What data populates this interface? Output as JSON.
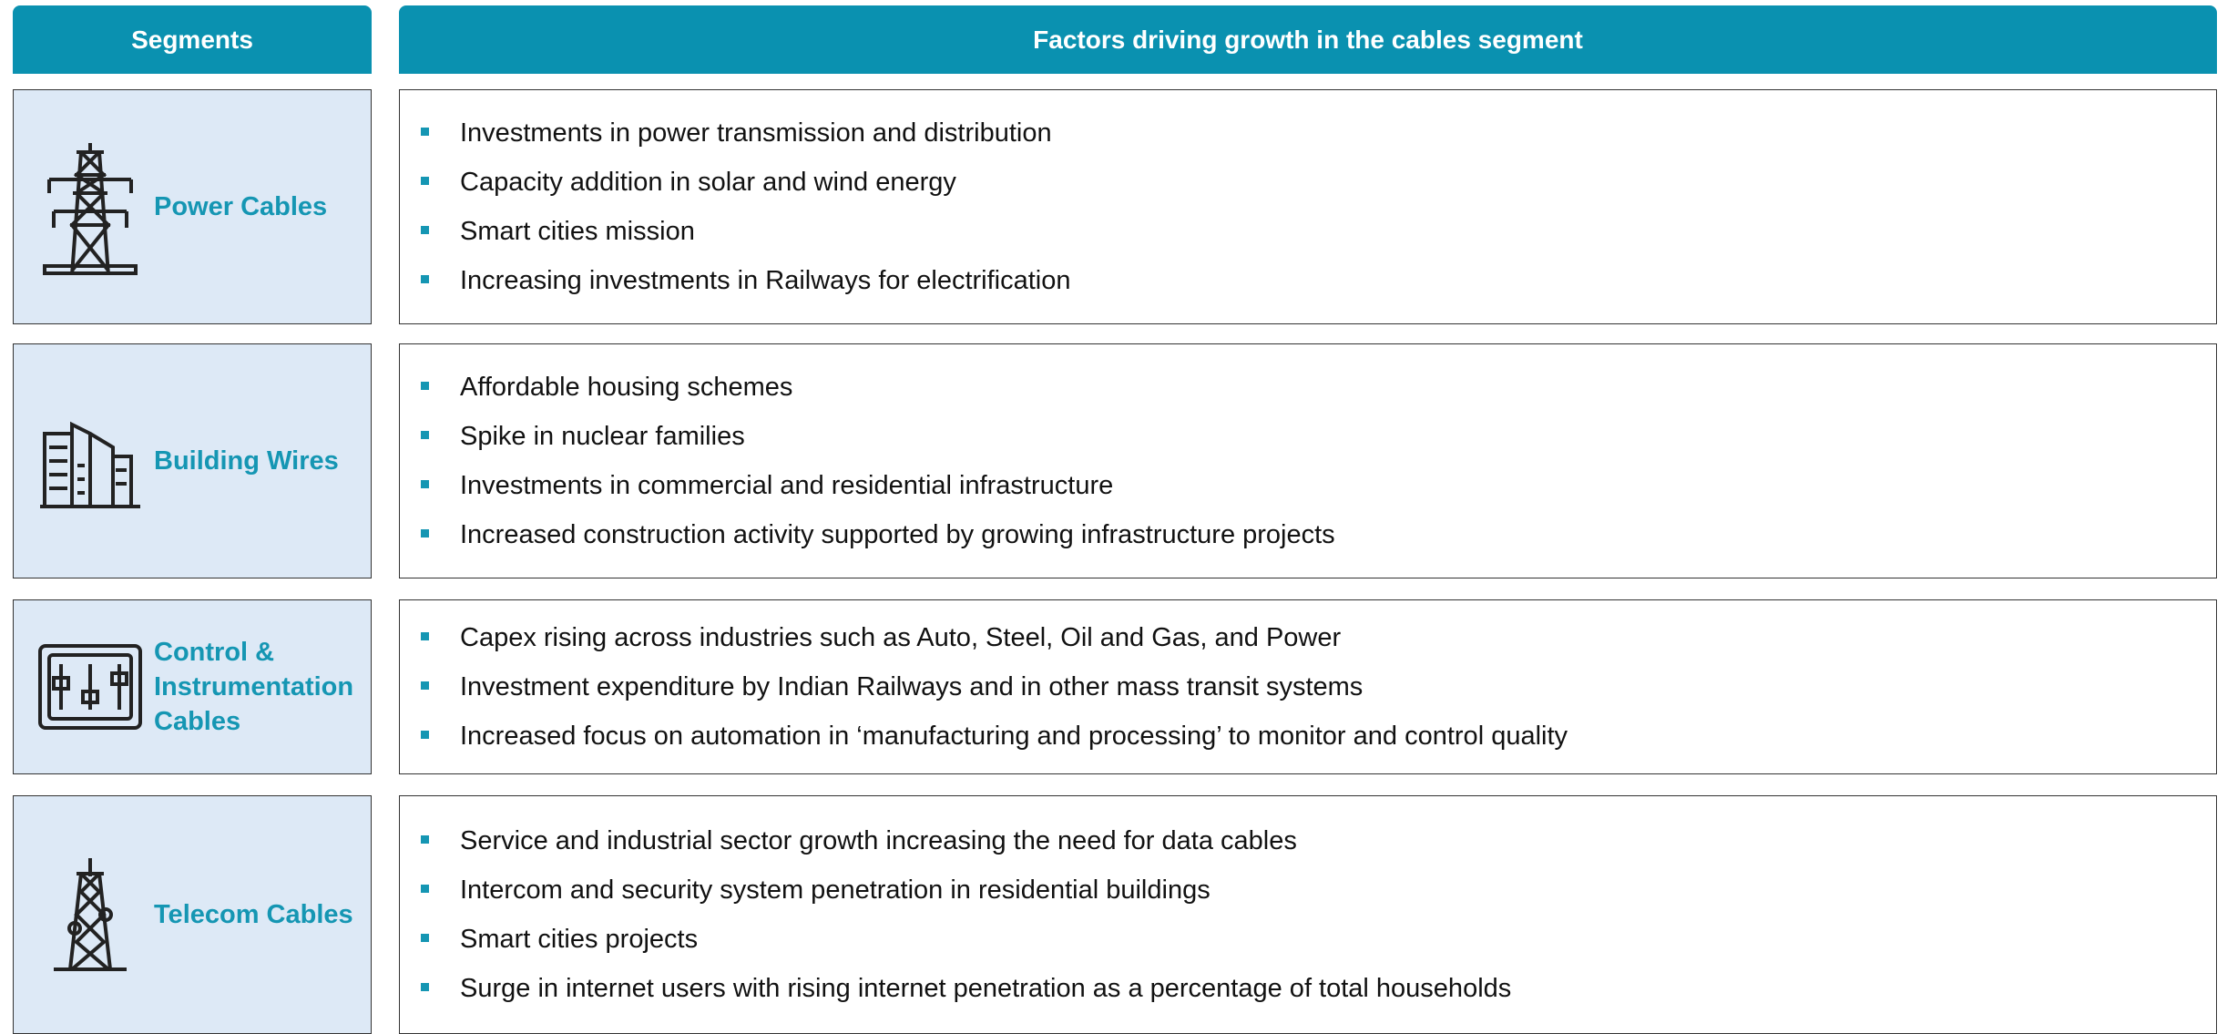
{
  "header": {
    "segments": "Segments",
    "factors": "Factors driving growth in the cables segment"
  },
  "rows": [
    {
      "segment": "Power Cables",
      "factors": [
        "Investments in power transmission and distribution",
        "Capacity addition in solar and wind energy",
        "Smart cities mission",
        "Increasing investments in Railways for electrification"
      ]
    },
    {
      "segment": "Building Wires",
      "factors": [
        "Affordable housing schemes",
        "Spike in nuclear families",
        "Investments in commercial and residential infrastructure",
        "Increased construction activity supported by growing infrastructure projects"
      ]
    },
    {
      "segment": "Control & Instrumentation Cables",
      "factors": [
        "Capex rising across industries such as Auto, Steel, Oil and Gas, and Power",
        "Investment expenditure by Indian Railways and in other mass transit systems",
        "Increased focus on automation in ‘manufacturing and processing’ to monitor and control quality"
      ]
    },
    {
      "segment": "Telecom Cables",
      "factors": [
        "Service and industrial sector growth increasing the need for data cables",
        "Intercom and security system penetration in residential buildings",
        "Smart cities projects",
        "Surge in internet users with rising internet penetration as a percentage of total households"
      ]
    }
  ]
}
